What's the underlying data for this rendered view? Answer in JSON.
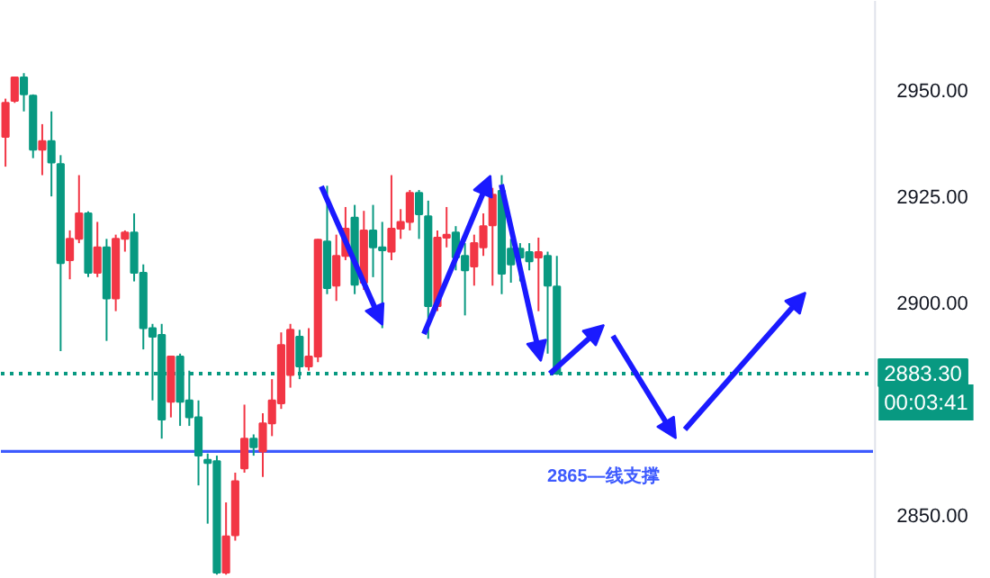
{
  "chart_data": {
    "type": "candlestick",
    "categories": [
      null,
      null,
      null,
      null,
      null,
      null,
      null,
      null,
      null,
      null,
      null,
      null,
      null,
      null,
      null,
      null,
      null,
      null,
      null,
      null,
      null,
      null,
      null,
      null,
      null,
      null,
      null,
      null,
      null,
      null,
      null,
      null,
      null,
      null,
      null,
      null,
      null,
      null,
      null,
      null,
      null,
      null,
      null,
      null,
      null,
      null,
      null,
      null,
      null,
      null,
      null,
      null,
      null,
      null,
      null,
      null,
      null,
      null,
      null,
      null,
      null,
      null,
      null,
      null,
      null,
      null,
      null,
      null,
      null,
      null,
      null,
      null,
      null,
      null,
      null,
      null,
      null,
      null,
      null,
      null,
      null,
      null,
      null,
      null,
      null,
      null,
      null,
      null,
      null,
      null,
      null,
      null,
      null,
      null,
      null
    ],
    "ohlc": [
      [
        2939,
        2948,
        2932,
        2947
      ],
      [
        2947.5,
        2953,
        2947,
        2953
      ],
      [
        2953,
        2954,
        2945,
        2949
      ],
      [
        2948.7,
        2949,
        2934,
        2936
      ],
      [
        2936,
        2942,
        2930,
        2938
      ],
      [
        2938,
        2945,
        2925,
        2933
      ],
      [
        2932.6,
        2934.7,
        2888.6,
        2909.3
      ],
      [
        2910,
        2917,
        2905.5,
        2915
      ],
      [
        2915,
        2930,
        2914,
        2921
      ],
      [
        2921,
        2921.5,
        2906,
        2907
      ],
      [
        2907,
        2919,
        2906,
        2913
      ],
      [
        2913,
        2915,
        2891,
        2901
      ],
      [
        2901,
        2916,
        2898,
        2915
      ],
      [
        2915,
        2917,
        2912,
        2916.5
      ],
      [
        2916.5,
        2921,
        2905,
        2907
      ],
      [
        2907,
        2909,
        2889,
        2894
      ],
      [
        2894,
        2895,
        2877,
        2892
      ],
      [
        2892.4,
        2895,
        2868,
        2872.5
      ],
      [
        2876.7,
        2887.3,
        2873,
        2887.3
      ],
      [
        2887.3,
        2888,
        2871,
        2876.7
      ],
      [
        2877,
        2884,
        2871,
        2873
      ],
      [
        2873,
        2877,
        2857,
        2864
      ],
      [
        2863,
        2864.5,
        2848,
        2862.3
      ],
      [
        2862.7,
        2864,
        2836,
        2836.5
      ],
      [
        2836.5,
        2853,
        2836,
        2845
      ],
      [
        2845.3,
        2860,
        2844,
        2858
      ],
      [
        2861,
        2876,
        2860,
        2868
      ],
      [
        2868,
        2869,
        2864,
        2866
      ],
      [
        2865,
        2874,
        2859,
        2871.6
      ],
      [
        2871.6,
        2882,
        2868.6,
        2877
      ],
      [
        2876.3,
        2893,
        2875,
        2890
      ],
      [
        2883,
        2895,
        2880,
        2893.6
      ],
      [
        2892,
        2893.6,
        2882,
        2885
      ],
      [
        2885,
        2894,
        2884,
        2887.3
      ],
      [
        2887.3,
        2915,
        2886,
        2914.8
      ],
      [
        2914.4,
        2927.5,
        2902,
        2903.4
      ],
      [
        2904,
        2916,
        2900.4,
        2911
      ],
      [
        2911,
        2922.5,
        2910,
        2917.4
      ],
      [
        2920,
        2923,
        2902,
        2904.2
      ],
      [
        2904.7,
        2921.6,
        2903,
        2917
      ],
      [
        2917,
        2923,
        2906,
        2913
      ],
      [
        2913,
        2919,
        2894,
        2912.3
      ],
      [
        2912,
        2930,
        2910,
        2917.4
      ],
      [
        2917.4,
        2922,
        2915,
        2919
      ],
      [
        2919,
        2926.5,
        2917,
        2925.8
      ],
      [
        2925.8,
        2926.5,
        2915,
        2920.8
      ],
      [
        2920.3,
        2924,
        2891.5,
        2899.2
      ],
      [
        2899.2,
        2917,
        2898,
        2915.3
      ],
      [
        2915.3,
        2922.5,
        2913,
        2916
      ],
      [
        2916.5,
        2918,
        2907.6,
        2910.6
      ],
      [
        2911,
        2914,
        2897,
        2907.6
      ],
      [
        2908.5,
        2916,
        2904,
        2914
      ],
      [
        2913,
        2921,
        2911,
        2918
      ],
      [
        2918.2,
        2927,
        2904,
        2925.4
      ],
      [
        2926.3,
        2930,
        2902,
        2906.8
      ],
      [
        2912.7,
        2915,
        2904.7,
        2909
      ],
      [
        2912.7,
        2914,
        2905,
        2910.6
      ],
      [
        2911.9,
        2914,
        2907.6,
        2909.7
      ],
      [
        2910.6,
        2915.3,
        2898,
        2911.9
      ],
      [
        2911,
        2912,
        2888,
        2904
      ],
      [
        2903.8,
        2911,
        2883,
        2883.3
      ],
      null,
      null,
      null,
      null,
      null,
      null,
      null,
      null,
      null,
      null,
      null,
      null,
      null,
      null,
      null,
      null,
      null,
      null,
      null,
      null,
      null,
      null,
      null,
      null,
      null,
      null,
      null,
      null,
      null,
      null,
      null,
      null,
      null,
      null
    ],
    "colors": [
      "#f23645",
      "#f23645",
      "#089981",
      "#089981",
      "#f23645",
      "#089981",
      "#089981",
      "#f23645",
      "#f23645",
      "#089981",
      "#f23645",
      "#089981",
      "#f23645",
      "#f23645",
      "#089981",
      "#089981",
      "#089981",
      "#089981",
      "#f23645",
      "#089981",
      "#089981",
      "#089981",
      "#089981",
      "#089981",
      "#f23645",
      "#f23645",
      "#f23645",
      "#089981",
      "#f23645",
      "#f23645",
      "#f23645",
      "#f23645",
      "#089981",
      "#f23645",
      "#f23645",
      "#089981",
      "#f23645",
      "#f23645",
      "#089981",
      "#f23645",
      "#089981",
      "#089981",
      "#f23645",
      "#f23645",
      "#f23645",
      "#089981",
      "#089981",
      "#f23645",
      "#f23645",
      "#089981",
      "#089981",
      "#f23645",
      "#f23645",
      "#f23645",
      "#089981",
      "#089981",
      "#089981",
      "#089981",
      "#f23645",
      "#089981",
      "#089981",
      null,
      null,
      null,
      null,
      null,
      null,
      null,
      null,
      null,
      null,
      null,
      null,
      null,
      null,
      null,
      null,
      null,
      null,
      null,
      null,
      null,
      null,
      null,
      null,
      null,
      null,
      null,
      null,
      null,
      null,
      null,
      null,
      null,
      null
    ],
    "ylim": [
      2835,
      2971
    ],
    "yticks": [
      {
        "value": 2850,
        "label": "2850.00"
      },
      {
        "value": 2900,
        "label": "2900.00"
      },
      {
        "value": 2925,
        "label": "2925.00"
      },
      {
        "value": 2950,
        "label": "2950.00"
      }
    ],
    "tick_labels": "y",
    "grid": false,
    "ref_lines": [
      {
        "axis": "y",
        "value": 2883.3,
        "label": "2883.30",
        "color": "#089981",
        "line_style": "dotted"
      },
      {
        "axis": "y",
        "value": 2865,
        "label": "2865—线支撑",
        "color": "#3d5afe",
        "line_style": "solid"
      }
    ],
    "annotations": [
      "00:03:41"
    ]
  }
}
